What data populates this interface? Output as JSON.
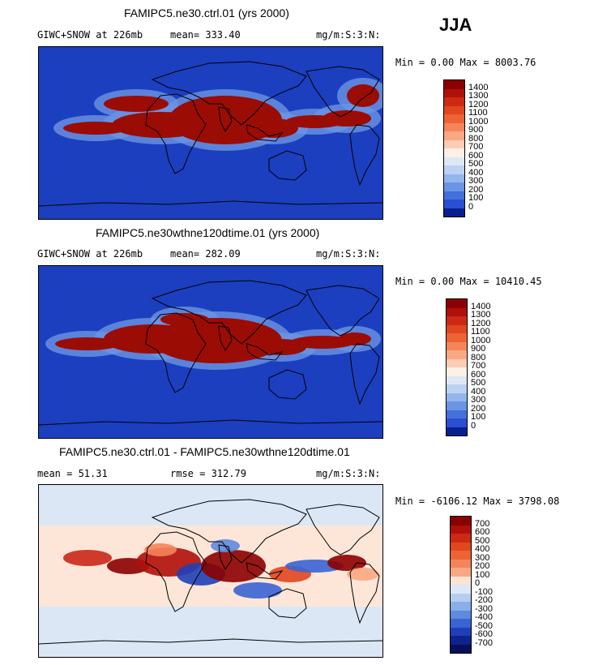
{
  "season": "JJA",
  "panels": [
    {
      "id": "ctrl",
      "title": "FAMIPC5.ne30.ctrl.01 (yrs 2000)",
      "variable_label": "GIWC+SNOW at 226mb",
      "stat_label": "mean= 333.40",
      "units": "mg/m:S:3:N:",
      "minmax": "Min =   0.00 Max = 8003.76",
      "colorbar_ticks": [
        "1400",
        "1300",
        "1200",
        "1100",
        "1000",
        "900",
        "800",
        "700",
        "600",
        "500",
        "400",
        "300",
        "200",
        "100",
        "0"
      ],
      "colorbar_colors": [
        "#8b0000",
        "#b0100a",
        "#cc2a12",
        "#e0461f",
        "#ee6335",
        "#f5845a",
        "#f9a883",
        "#fccdb4",
        "#fdf0e6",
        "#dde8f7",
        "#bcd2f2",
        "#93b6ec",
        "#6b95e4",
        "#4470dc",
        "#2a4fd2",
        "#0a1f8f"
      ],
      "map_style": "ctrl"
    },
    {
      "id": "test",
      "title": "FAMIPC5.ne30wthne120dtime.01 (yrs 2000)",
      "variable_label": "GIWC+SNOW at 226mb",
      "stat_label": "mean= 282.09",
      "units": "mg/m:S:3:N:",
      "minmax": "Min =   0.00 Max = 10410.45",
      "colorbar_ticks": [
        "1400",
        "1300",
        "1200",
        "1100",
        "1000",
        "900",
        "800",
        "700",
        "600",
        "500",
        "400",
        "300",
        "200",
        "100",
        "0"
      ],
      "colorbar_colors": [
        "#8b0000",
        "#b0100a",
        "#cc2a12",
        "#e0461f",
        "#ee6335",
        "#f5845a",
        "#f9a883",
        "#fccdb4",
        "#fdf0e6",
        "#dde8f7",
        "#bcd2f2",
        "#93b6ec",
        "#6b95e4",
        "#4470dc",
        "#2a4fd2",
        "#0a1f8f"
      ],
      "map_style": "test"
    },
    {
      "id": "diff",
      "title": "FAMIPC5.ne30.ctrl.01 - FAMIPC5.ne30wthne120dtime.01",
      "variable_label": "mean =   51.31",
      "stat_label": "rmse = 312.79",
      "units": "mg/m:S:3:N:",
      "minmax": "Min = -6106.12 Max = 3798.08",
      "colorbar_ticks": [
        "700",
        "600",
        "500",
        "400",
        "300",
        "200",
        "100",
        "0",
        "-100",
        "-200",
        "-300",
        "-400",
        "-500",
        "-600",
        "-700"
      ],
      "colorbar_colors": [
        "#8b0000",
        "#b0100a",
        "#cc2a12",
        "#e0461f",
        "#ee6335",
        "#f5845a",
        "#f9a883",
        "#fde3d4",
        "#dce8f6",
        "#b5cdef",
        "#8aaee8",
        "#5f8adf",
        "#3a63d4",
        "#1f3fb8",
        "#0f238f",
        "#06105e"
      ],
      "map_style": "diff"
    }
  ]
}
